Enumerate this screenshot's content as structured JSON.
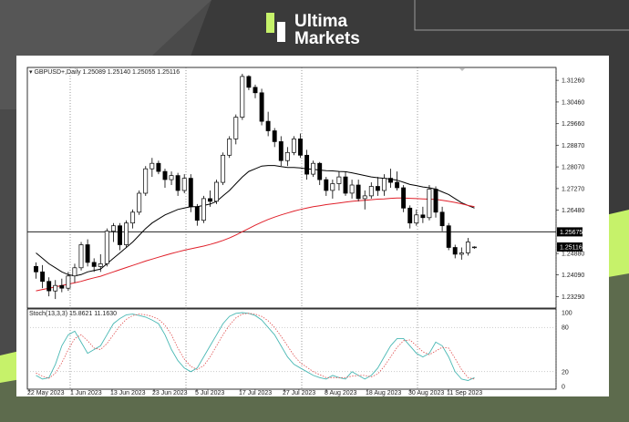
{
  "brand": {
    "name_line1": "Ultima",
    "name_line2": "Markets"
  },
  "colors": {
    "ma_fast": "#000000",
    "ma_slow": "#e0202a",
    "stoch_main": "#49b8b4",
    "stoch_signal": "#e05050",
    "background_dark": "#3a3a3a",
    "accent_green": "#c6f26a"
  },
  "main_chart": {
    "header": "▾ GBPUSD+,Daily  1.25089 1.25140 1.25055 1.25116",
    "price_labels": [
      "1.31260",
      "1.30460",
      "1.29660",
      "1.28870",
      "1.28070",
      "1.27270",
      "1.26480",
      "1.25675",
      "1.25116",
      "1.24880",
      "1.24090",
      "1.23290"
    ],
    "hline_label": "1.25675",
    "current_price_label": "1.25116"
  },
  "stoch": {
    "header": "Stoch(13,3,3) 15.8621 11.1630",
    "levels": [
      "100",
      "80",
      "20",
      "0"
    ]
  },
  "x_axis": {
    "labels": [
      "22 May 2023",
      "1 Jun 2023",
      "13 Jun 2023",
      "23 Jun 2023",
      "5 Jul 2023",
      "17 Jul 2023",
      "27 Jul 2023",
      "8 Aug 2023",
      "18 Aug 2023",
      "30 Aug 2023",
      "11 Sep 2023"
    ]
  },
  "chart_data": {
    "type": "candlestick",
    "symbol": "GBPUSD+",
    "timeframe": "Daily",
    "ylim": [
      1.229,
      1.317
    ],
    "hline": 1.25675,
    "candles": [
      {
        "o": 1.244,
        "h": 1.2455,
        "l": 1.2395,
        "c": 1.242
      },
      {
        "o": 1.242,
        "h": 1.2445,
        "l": 1.236,
        "c": 1.2385
      },
      {
        "o": 1.2385,
        "h": 1.24,
        "l": 1.233,
        "c": 1.235
      },
      {
        "o": 1.235,
        "h": 1.239,
        "l": 1.232,
        "c": 1.237
      },
      {
        "o": 1.237,
        "h": 1.2395,
        "l": 1.2345,
        "c": 1.236
      },
      {
        "o": 1.236,
        "h": 1.242,
        "l": 1.235,
        "c": 1.2405
      },
      {
        "o": 1.2405,
        "h": 1.245,
        "l": 1.238,
        "c": 1.2435
      },
      {
        "o": 1.2435,
        "h": 1.253,
        "l": 1.2425,
        "c": 1.252
      },
      {
        "o": 1.252,
        "h": 1.254,
        "l": 1.244,
        "c": 1.2455
      },
      {
        "o": 1.2455,
        "h": 1.247,
        "l": 1.242,
        "c": 1.244
      },
      {
        "o": 1.244,
        "h": 1.2485,
        "l": 1.242,
        "c": 1.245
      },
      {
        "o": 1.245,
        "h": 1.258,
        "l": 1.244,
        "c": 1.257
      },
      {
        "o": 1.257,
        "h": 1.26,
        "l": 1.253,
        "c": 1.259
      },
      {
        "o": 1.259,
        "h": 1.26,
        "l": 1.25,
        "c": 1.252
      },
      {
        "o": 1.252,
        "h": 1.261,
        "l": 1.251,
        "c": 1.26
      },
      {
        "o": 1.26,
        "h": 1.265,
        "l": 1.258,
        "c": 1.264
      },
      {
        "o": 1.264,
        "h": 1.272,
        "l": 1.263,
        "c": 1.271
      },
      {
        "o": 1.271,
        "h": 1.281,
        "l": 1.27,
        "c": 1.28
      },
      {
        "o": 1.28,
        "h": 1.284,
        "l": 1.277,
        "c": 1.282
      },
      {
        "o": 1.282,
        "h": 1.283,
        "l": 1.278,
        "c": 1.279
      },
      {
        "o": 1.279,
        "h": 1.28,
        "l": 1.273,
        "c": 1.276
      },
      {
        "o": 1.276,
        "h": 1.279,
        "l": 1.274,
        "c": 1.2775
      },
      {
        "o": 1.2775,
        "h": 1.2785,
        "l": 1.27,
        "c": 1.272
      },
      {
        "o": 1.272,
        "h": 1.278,
        "l": 1.271,
        "c": 1.2765
      },
      {
        "o": 1.2765,
        "h": 1.278,
        "l": 1.264,
        "c": 1.266
      },
      {
        "o": 1.266,
        "h": 1.267,
        "l": 1.259,
        "c": 1.261
      },
      {
        "o": 1.261,
        "h": 1.27,
        "l": 1.26,
        "c": 1.269
      },
      {
        "o": 1.269,
        "h": 1.272,
        "l": 1.266,
        "c": 1.268
      },
      {
        "o": 1.268,
        "h": 1.276,
        "l": 1.267,
        "c": 1.275
      },
      {
        "o": 1.275,
        "h": 1.286,
        "l": 1.274,
        "c": 1.285
      },
      {
        "o": 1.285,
        "h": 1.292,
        "l": 1.284,
        "c": 1.291
      },
      {
        "o": 1.291,
        "h": 1.3,
        "l": 1.289,
        "c": 1.299
      },
      {
        "o": 1.299,
        "h": 1.315,
        "l": 1.298,
        "c": 1.314
      },
      {
        "o": 1.314,
        "h": 1.3145,
        "l": 1.309,
        "c": 1.31
      },
      {
        "o": 1.31,
        "h": 1.311,
        "l": 1.306,
        "c": 1.308
      },
      {
        "o": 1.308,
        "h": 1.3095,
        "l": 1.296,
        "c": 1.2975
      },
      {
        "o": 1.2975,
        "h": 1.301,
        "l": 1.292,
        "c": 1.294
      },
      {
        "o": 1.294,
        "h": 1.295,
        "l": 1.288,
        "c": 1.29
      },
      {
        "o": 1.29,
        "h": 1.292,
        "l": 1.281,
        "c": 1.283
      },
      {
        "o": 1.283,
        "h": 1.288,
        "l": 1.281,
        "c": 1.286
      },
      {
        "o": 1.286,
        "h": 1.292,
        "l": 1.285,
        "c": 1.291
      },
      {
        "o": 1.291,
        "h": 1.293,
        "l": 1.284,
        "c": 1.285
      },
      {
        "o": 1.285,
        "h": 1.287,
        "l": 1.276,
        "c": 1.278
      },
      {
        "o": 1.278,
        "h": 1.283,
        "l": 1.277,
        "c": 1.282
      },
      {
        "o": 1.282,
        "h": 1.2825,
        "l": 1.274,
        "c": 1.276
      },
      {
        "o": 1.276,
        "h": 1.277,
        "l": 1.27,
        "c": 1.272
      },
      {
        "o": 1.272,
        "h": 1.276,
        "l": 1.269,
        "c": 1.2745
      },
      {
        "o": 1.2745,
        "h": 1.279,
        "l": 1.272,
        "c": 1.277
      },
      {
        "o": 1.277,
        "h": 1.279,
        "l": 1.27,
        "c": 1.271
      },
      {
        "o": 1.271,
        "h": 1.276,
        "l": 1.269,
        "c": 1.274
      },
      {
        "o": 1.274,
        "h": 1.276,
        "l": 1.268,
        "c": 1.269
      },
      {
        "o": 1.269,
        "h": 1.272,
        "l": 1.265,
        "c": 1.27
      },
      {
        "o": 1.27,
        "h": 1.275,
        "l": 1.269,
        "c": 1.2735
      },
      {
        "o": 1.2735,
        "h": 1.277,
        "l": 1.27,
        "c": 1.272
      },
      {
        "o": 1.272,
        "h": 1.278,
        "l": 1.27,
        "c": 1.2765
      },
      {
        "o": 1.2765,
        "h": 1.28,
        "l": 1.273,
        "c": 1.275
      },
      {
        "o": 1.275,
        "h": 1.279,
        "l": 1.272,
        "c": 1.273
      },
      {
        "o": 1.273,
        "h": 1.274,
        "l": 1.264,
        "c": 1.2655
      },
      {
        "o": 1.2655,
        "h": 1.2665,
        "l": 1.258,
        "c": 1.26
      },
      {
        "o": 1.26,
        "h": 1.265,
        "l": 1.259,
        "c": 1.263
      },
      {
        "o": 1.263,
        "h": 1.266,
        "l": 1.26,
        "c": 1.262
      },
      {
        "o": 1.262,
        "h": 1.274,
        "l": 1.261,
        "c": 1.2725
      },
      {
        "o": 1.2725,
        "h": 1.2735,
        "l": 1.262,
        "c": 1.264
      },
      {
        "o": 1.264,
        "h": 1.266,
        "l": 1.257,
        "c": 1.259
      },
      {
        "o": 1.259,
        "h": 1.26,
        "l": 1.25,
        "c": 1.251
      },
      {
        "o": 1.251,
        "h": 1.252,
        "l": 1.247,
        "c": 1.2485
      },
      {
        "o": 1.2485,
        "h": 1.251,
        "l": 1.2465,
        "c": 1.249
      },
      {
        "o": 1.249,
        "h": 1.2545,
        "l": 1.248,
        "c": 1.253
      },
      {
        "o": 1.25089,
        "h": 1.2514,
        "l": 1.25055,
        "c": 1.25116
      }
    ],
    "series": [
      {
        "values": [
          1.249,
          1.247,
          1.245,
          1.2435,
          1.242,
          1.241,
          1.2405,
          1.241,
          1.242,
          1.2425,
          1.243,
          1.245,
          1.247,
          1.249,
          1.251,
          1.253,
          1.2555,
          1.258,
          1.26,
          1.2615,
          1.263,
          1.264,
          1.265,
          1.2655,
          1.266,
          1.266,
          1.2665,
          1.267,
          1.268,
          1.27,
          1.272,
          1.2745,
          1.277,
          1.279,
          1.28,
          1.281,
          1.2812,
          1.2812,
          1.2808,
          1.2805,
          1.2805,
          1.2803,
          1.28,
          1.2798,
          1.2795,
          1.2793,
          1.2792,
          1.279,
          1.2789,
          1.2785,
          1.278,
          1.2775,
          1.277,
          1.2767,
          1.2765,
          1.2762,
          1.2758,
          1.275,
          1.2742,
          1.2738,
          1.2733,
          1.273,
          1.2725,
          1.2715,
          1.2705,
          1.269,
          1.2675,
          1.2665,
          1.2655
        ]
      },
      {
        "values": [
          1.235,
          1.2355,
          1.236,
          1.2365,
          1.237,
          1.2375,
          1.238,
          1.2385,
          1.2392,
          1.2398,
          1.2404,
          1.2412,
          1.242,
          1.2428,
          1.2436,
          1.2444,
          1.2452,
          1.246,
          1.2467,
          1.2474,
          1.2481,
          1.2488,
          1.2494,
          1.25,
          1.2505,
          1.251,
          1.2515,
          1.2521,
          1.2528,
          1.2536,
          1.2545,
          1.2556,
          1.2568,
          1.258,
          1.2592,
          1.2603,
          1.2613,
          1.2622,
          1.263,
          1.2637,
          1.2644,
          1.265,
          1.2655,
          1.266,
          1.2664,
          1.2668,
          1.2671,
          1.2674,
          1.2677,
          1.268,
          1.2682,
          1.2684,
          1.2686,
          1.2688,
          1.2689,
          1.2691,
          1.2692,
          1.2692,
          1.2691,
          1.269,
          1.2689,
          1.2688,
          1.2687,
          1.2684,
          1.268,
          1.2676,
          1.2671,
          1.2665,
          1.266
        ]
      },
      {
        "values": [
          15,
          10,
          12,
          30,
          55,
          70,
          75,
          60,
          45,
          50,
          55,
          70,
          85,
          92,
          97,
          98,
          96,
          94,
          90,
          85,
          70,
          50,
          35,
          25,
          20,
          25,
          40,
          55,
          70,
          85,
          95,
          99,
          100,
          99,
          96,
          90,
          80,
          70,
          55,
          40,
          30,
          25,
          20,
          15,
          12,
          10,
          15,
          12,
          10,
          20,
          15,
          10,
          15,
          25,
          40,
          55,
          65,
          65,
          55,
          45,
          40,
          45,
          60,
          55,
          40,
          20,
          10,
          8,
          12
        ]
      },
      {
        "values": [
          18,
          14,
          11,
          18,
          32,
          50,
          65,
          70,
          62,
          52,
          50,
          58,
          70,
          82,
          91,
          96,
          98,
          97,
          95,
          91,
          83,
          70,
          52,
          37,
          27,
          23,
          28,
          40,
          55,
          70,
          83,
          93,
          98,
          99,
          98,
          95,
          89,
          80,
          68,
          55,
          42,
          32,
          26,
          20,
          16,
          12,
          12,
          12,
          12,
          14,
          15,
          15,
          13,
          17,
          27,
          40,
          53,
          62,
          63,
          55,
          47,
          43,
          48,
          53,
          52,
          38,
          23,
          12,
          10
        ]
      }
    ],
    "stoch": {
      "k": 15.8621,
      "d": 11.163,
      "levels": [
        20,
        80
      ]
    }
  }
}
